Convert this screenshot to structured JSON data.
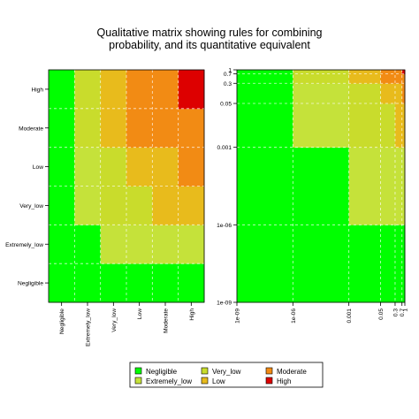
{
  "title_line1": "Qualitative matrix showing rules for combining",
  "title_line2": "probability, and its quantitative equivalent",
  "levels": [
    "Negligible",
    "Extremely_low",
    "Very_low",
    "Low",
    "Moderate",
    "High"
  ],
  "level_colors": {
    "Negligible": "#00ff00",
    "Extremely_low": "#c5e23a",
    "Very_low": "#c9dc2c",
    "Low": "#e8bb1c",
    "Moderate": "#f28b14",
    "High": "#dd0000"
  },
  "legend": {
    "items": [
      "Negligible",
      "Extremely_low",
      "Very_low",
      "Low",
      "Moderate",
      "High"
    ]
  },
  "chart_data": [
    {
      "type": "heatmap",
      "title": "",
      "x_categories": [
        "Negligible",
        "Extremely_low",
        "Very_low",
        "Low",
        "Moderate",
        "High"
      ],
      "y_categories": [
        "Negligible",
        "Extremely_low",
        "Very_low",
        "Low",
        "Moderate",
        "High"
      ],
      "grid": true,
      "cells_by_row_bottom_to_top": [
        [
          "Negligible",
          "Negligible",
          "Negligible",
          "Negligible",
          "Negligible",
          "Negligible"
        ],
        [
          "Negligible",
          "Negligible",
          "Extremely_low",
          "Extremely_low",
          "Extremely_low",
          "Extremely_low"
        ],
        [
          "Negligible",
          "Extremely_low",
          "Very_low",
          "Very_low",
          "Low",
          "Low"
        ],
        [
          "Negligible",
          "Extremely_low",
          "Very_low",
          "Low",
          "Low",
          "Moderate"
        ],
        [
          "Negligible",
          "Very_low",
          "Low",
          "Moderate",
          "Moderate",
          "Moderate"
        ],
        [
          "Negligible",
          "Very_low",
          "Low",
          "Moderate",
          "Moderate",
          "High"
        ]
      ]
    },
    {
      "type": "heatmap",
      "title": "",
      "x_scale": "log",
      "y_scale": "log",
      "xlim": [
        1e-09,
        1
      ],
      "ylim": [
        1e-09,
        1
      ],
      "x_tick_labels": [
        "1e-09",
        "1e-06",
        "0.001",
        "0.05",
        "0.3",
        "0.7",
        "1"
      ],
      "y_tick_labels": [
        "1e-09",
        "1e-06",
        "0.001",
        "0.05",
        "0.3",
        "0.7",
        "1"
      ],
      "bin_edges": [
        1e-09,
        1e-06,
        0.001,
        0.05,
        0.3,
        0.7,
        1
      ],
      "grid": true,
      "cells_by_row_bottom_to_top": [
        [
          "Negligible",
          "Negligible",
          "Negligible",
          "Negligible",
          "Negligible",
          "Negligible"
        ],
        [
          "Negligible",
          "Negligible",
          "Extremely_low",
          "Extremely_low",
          "Extremely_low",
          "Extremely_low"
        ],
        [
          "Negligible",
          "Extremely_low",
          "Very_low",
          "Very_low",
          "Low",
          "Low"
        ],
        [
          "Negligible",
          "Extremely_low",
          "Very_low",
          "Low",
          "Low",
          "Moderate"
        ],
        [
          "Negligible",
          "Very_low",
          "Low",
          "Moderate",
          "Moderate",
          "Moderate"
        ],
        [
          "Negligible",
          "Very_low",
          "Low",
          "Moderate",
          "Moderate",
          "High"
        ]
      ]
    }
  ]
}
